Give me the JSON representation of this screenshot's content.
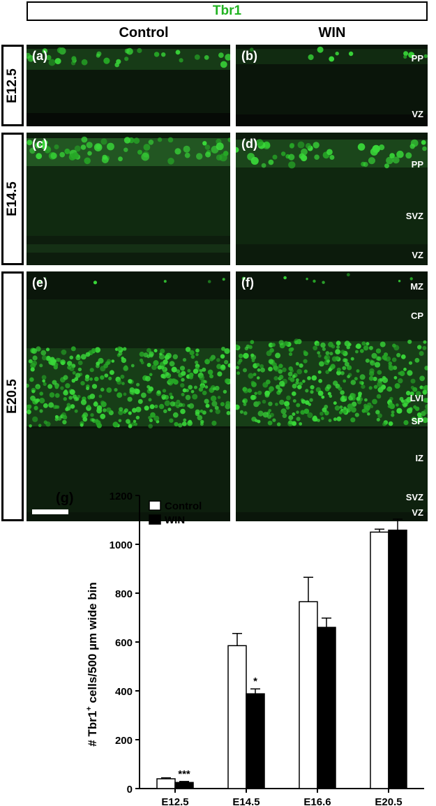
{
  "header": {
    "title": "Tbr1"
  },
  "columns": [
    "Control",
    "WIN"
  ],
  "rows": [
    {
      "label": "E12.5",
      "panels": [
        "(a)",
        "(b)"
      ],
      "zones": [
        "PP",
        "VZ"
      ]
    },
    {
      "label": "E14.5",
      "panels": [
        "(c)",
        "(d)"
      ],
      "zones": [
        "PP",
        "SVZ",
        "VZ"
      ]
    },
    {
      "label": "E20.5",
      "panels": [
        "(e)",
        "(f)"
      ],
      "zones": [
        "MZ",
        "CP",
        "LVI",
        "SP",
        "IZ",
        "SVZ",
        "VZ"
      ]
    }
  ],
  "colors": {
    "marker": "#22b322",
    "background": "#0a140a"
  },
  "chart_data": {
    "type": "bar",
    "panel_label": "(g)",
    "categories": [
      "E12.5",
      "E14.5",
      "E16.6",
      "E20.5"
    ],
    "series": [
      {
        "name": "Control",
        "fill": "#ffffff",
        "values": [
          40,
          585,
          765,
          1050
        ],
        "errors": [
          4,
          50,
          100,
          12
        ]
      },
      {
        "name": "WIN",
        "fill": "#000000",
        "values": [
          25,
          388,
          660,
          1058
        ],
        "errors": [
          4,
          20,
          38,
          45
        ]
      }
    ],
    "significance": [
      "***",
      "*",
      "",
      ""
    ],
    "ylabel_prefix": "# Tbr1",
    "ylabel_sup": "+",
    "ylabel_suffix": " cells/500 µm wide bin",
    "ylim": [
      0,
      1200
    ],
    "yticks": [
      0,
      200,
      400,
      600,
      800,
      1000,
      1200
    ],
    "legend": "top-left"
  }
}
